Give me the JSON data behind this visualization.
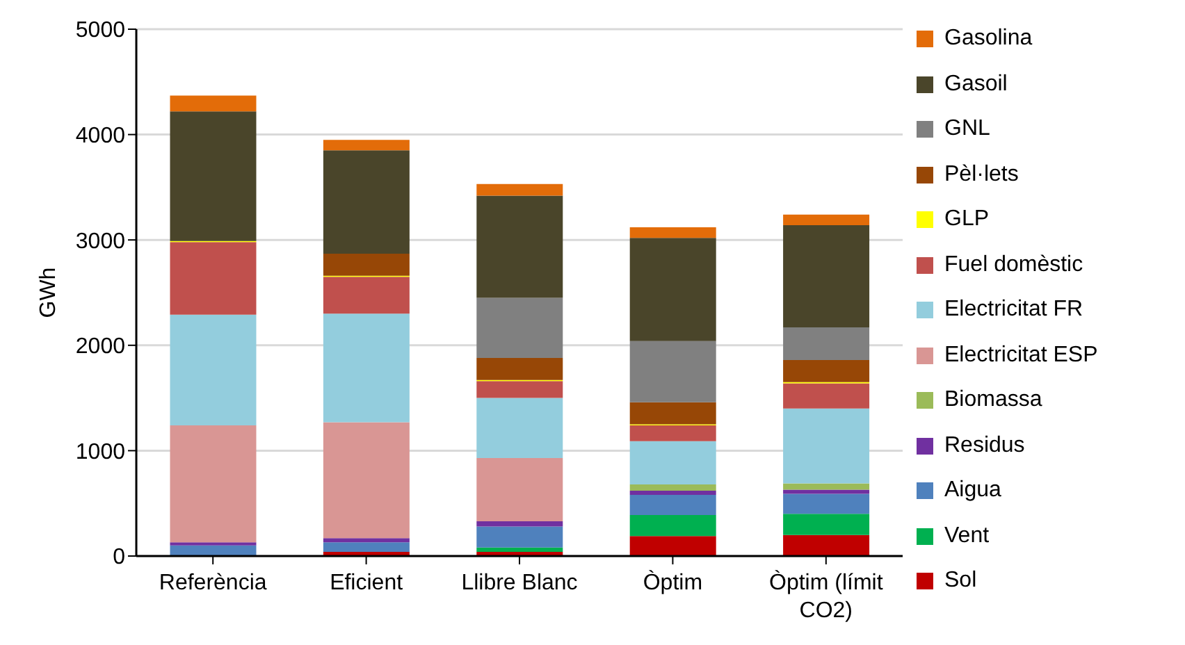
{
  "chart_data": {
    "type": "bar",
    "stacked": true,
    "ylabel": "GWh",
    "categories": [
      "Referència",
      "Eficient",
      "Llibre Blanc",
      "Òptim",
      "Òptim (límit CO2)"
    ],
    "ylim": [
      0,
      5000
    ],
    "yticks": [
      0,
      1000,
      2000,
      3000,
      4000,
      5000
    ],
    "grid": "y",
    "legend": "right",
    "series": [
      {
        "name": "Sol",
        "color": "#c00000",
        "values": [
          0,
          40,
          40,
          190,
          200
        ]
      },
      {
        "name": "Vent",
        "color": "#00b050",
        "values": [
          0,
          0,
          40,
          200,
          200
        ]
      },
      {
        "name": "Aigua",
        "color": "#4f81bd",
        "values": [
          100,
          90,
          200,
          190,
          190
        ]
      },
      {
        "name": "Residus",
        "color": "#7030a0",
        "values": [
          30,
          40,
          50,
          40,
          40
        ]
      },
      {
        "name": "Biomassa",
        "color": "#9bbb59",
        "values": [
          0,
          0,
          0,
          60,
          60
        ]
      },
      {
        "name": "Electricitat ESP",
        "color": "#d99694",
        "values": [
          1110,
          1100,
          600,
          0,
          0
        ]
      },
      {
        "name": "Electricitat FR",
        "color": "#93cddd",
        "values": [
          1050,
          1030,
          570,
          410,
          710
        ]
      },
      {
        "name": "Fuel domèstic",
        "color": "#c0504d",
        "values": [
          690,
          350,
          160,
          150,
          240
        ]
      },
      {
        "name": "GLP",
        "color": "#ffff00",
        "values": [
          10,
          10,
          10,
          10,
          10
        ]
      },
      {
        "name": "Pèl·lets",
        "color": "#974706",
        "values": [
          0,
          210,
          210,
          210,
          210
        ]
      },
      {
        "name": "GNL",
        "color": "#808080",
        "values": [
          0,
          0,
          570,
          580,
          310
        ]
      },
      {
        "name": "Gasoil",
        "color": "#4a452a",
        "values": [
          1230,
          980,
          970,
          980,
          970
        ]
      },
      {
        "name": "Gasolina",
        "color": "#e36c09",
        "values": [
          150,
          100,
          110,
          100,
          100
        ]
      }
    ]
  }
}
